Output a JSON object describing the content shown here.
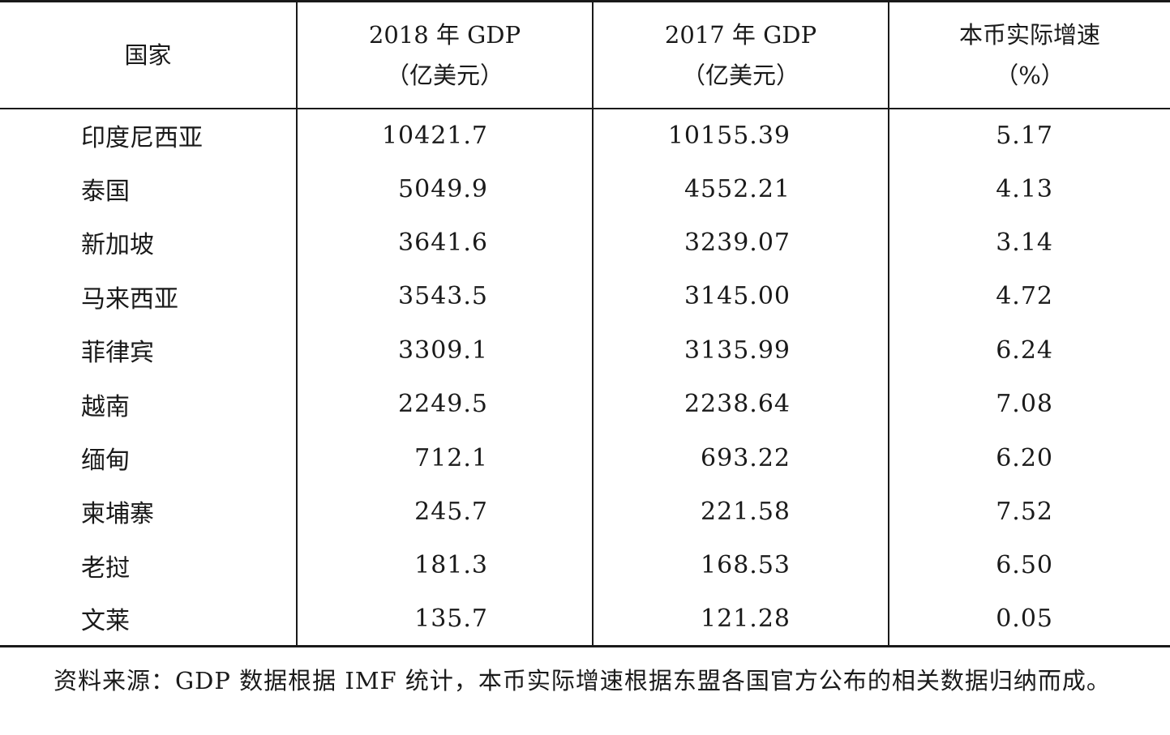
{
  "table": {
    "headers": [
      {
        "line1": "国家",
        "line2": ""
      },
      {
        "line1": "2018 年 GDP",
        "line2": "（亿美元）"
      },
      {
        "line1": "2017 年 GDP",
        "line2": "（亿美元）"
      },
      {
        "line1": "本币实际增速",
        "line2": "（%）"
      }
    ],
    "rows": [
      {
        "country": "印度尼西亚",
        "gdp2018": "10421.7",
        "gdp2017": "10155.39",
        "growth": "5.17"
      },
      {
        "country": "泰国",
        "gdp2018": "5049.9",
        "gdp2017": "4552.21",
        "growth": "4.13"
      },
      {
        "country": "新加坡",
        "gdp2018": "3641.6",
        "gdp2017": "3239.07",
        "growth": "3.14"
      },
      {
        "country": "马来西亚",
        "gdp2018": "3543.5",
        "gdp2017": "3145.00",
        "growth": "4.72"
      },
      {
        "country": "菲律宾",
        "gdp2018": "3309.1",
        "gdp2017": "3135.99",
        "growth": "6.24"
      },
      {
        "country": "越南",
        "gdp2018": "2249.5",
        "gdp2017": "2238.64",
        "growth": "7.08"
      },
      {
        "country": "缅甸",
        "gdp2018": "712.1",
        "gdp2017": "693.22",
        "growth": "6.20"
      },
      {
        "country": "柬埔寨",
        "gdp2018": "245.7",
        "gdp2017": "221.58",
        "growth": "7.52"
      },
      {
        "country": "老挝",
        "gdp2018": "181.3",
        "gdp2017": "168.53",
        "growth": "6.50"
      },
      {
        "country": "文莱",
        "gdp2018": "135.7",
        "gdp2017": "121.28",
        "growth": "0.05"
      }
    ]
  },
  "footnote": "资料来源：GDP 数据根据 IMF 统计，本币实际增速根据东盟各国官方公布的相关数据归纳而成。"
}
